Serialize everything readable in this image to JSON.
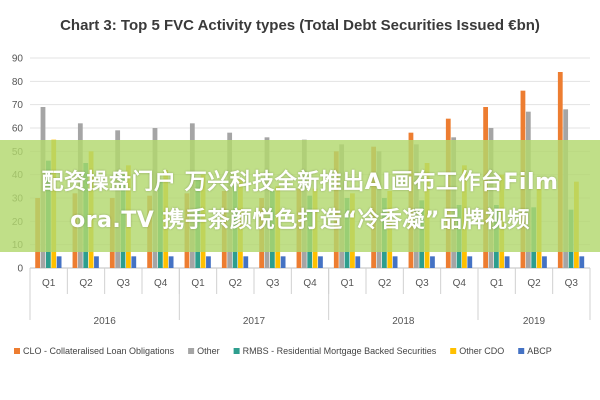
{
  "chart_data": {
    "type": "bar",
    "title": "Chart 3: Top 5 FVC Activity types (Total Debt Securities Issued €bn)",
    "xlabel": "",
    "ylabel": "",
    "ylim": [
      0,
      90
    ],
    "yticks": [
      0,
      10,
      20,
      30,
      40,
      50,
      60,
      70,
      80,
      90
    ],
    "grid": true,
    "legend_position": "bottom",
    "categories": [
      "Q1",
      "Q2",
      "Q3",
      "Q4",
      "Q1",
      "Q2",
      "Q3",
      "Q4",
      "Q1",
      "Q2",
      "Q3",
      "Q4",
      "Q1",
      "Q2",
      "Q3"
    ],
    "year_groups": [
      {
        "label": "2016",
        "count": 4
      },
      {
        "label": "2017",
        "count": 4
      },
      {
        "label": "2018",
        "count": 4
      },
      {
        "label": "2019",
        "count": 3
      }
    ],
    "series": [
      {
        "name": "CLO - Collateralised Loan Obligations",
        "color": "#ed7d31",
        "values": [
          30,
          32,
          30,
          31,
          32,
          33,
          30,
          34,
          50,
          52,
          58,
          64,
          69,
          76,
          84
        ]
      },
      {
        "name": "Other",
        "color": "#a5a5a5",
        "values": [
          69,
          62,
          59,
          60,
          62,
          58,
          56,
          55,
          53,
          50,
          53,
          56,
          60,
          67,
          68
        ]
      },
      {
        "name": "RMBS - Residential Mortgage Backed Securities",
        "color": "#2e9e8e",
        "values": [
          46,
          45,
          40,
          38,
          38,
          35,
          33,
          31,
          30,
          30,
          29,
          27,
          27,
          26,
          25
        ]
      },
      {
        "name": "Other CDO",
        "color": "#ffc000",
        "values": [
          55,
          50,
          44,
          42,
          40,
          38,
          35,
          34,
          32,
          33,
          45,
          44,
          40,
          39,
          37
        ]
      },
      {
        "name": "ABCP",
        "color": "#4472c4",
        "values": [
          5,
          5,
          5,
          5,
          5,
          5,
          5,
          5,
          5,
          5,
          5,
          5,
          5,
          5,
          5
        ]
      }
    ]
  },
  "overlay": {
    "line1": "配资操盘门户 万兴科技全新推出AI画布工作台Film",
    "line2": "ora.TV  携手茶颜悦色打造“冷香凝”品牌视频"
  }
}
